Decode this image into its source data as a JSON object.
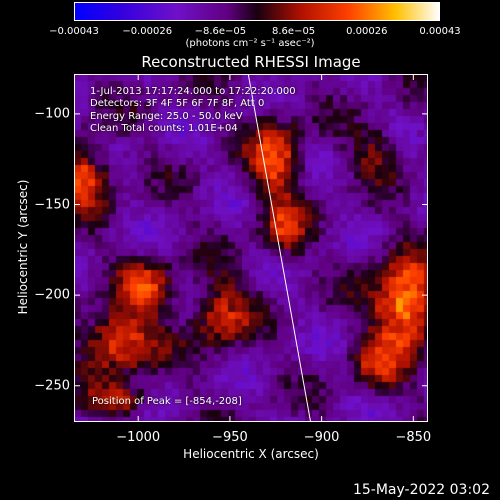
{
  "chart_data": {
    "type": "heatmap",
    "title": "Reconstructed RHESSI Image",
    "xlabel": "Heliocentric X (arcsec)",
    "ylabel": "Heliocentric Y (arcsec)",
    "xlim": [
      -1035,
      -842
    ],
    "ylim": [
      -270,
      -78
    ],
    "x_ticks": [
      -1000,
      -950,
      -900,
      -850
    ],
    "x_tick_labels": [
      "−1000",
      "−950",
      "−900",
      "−850"
    ],
    "y_ticks": [
      -100,
      -150,
      -200,
      -250
    ],
    "y_tick_labels": [
      "−100",
      "−150",
      "−200",
      "−250"
    ],
    "colorbar": {
      "range": [
        -0.00043,
        0.00043
      ],
      "tick_labels": [
        "−0.00043",
        "−0.00026",
        "−8.6e−05",
        "8.6e−05",
        "0.00026",
        "0.00043"
      ],
      "unit": "(photons cm⁻² s⁻¹ asec⁻²)"
    },
    "annotations": {
      "time_range": "1-Jul-2013 17:17:24.000 to 17:22:20.000",
      "detectors": "Detectors: 3F 4F 5F 6F 7F 8F, Att 0",
      "energy": "Energy Range: 25.0 - 50.0 keV",
      "clean": "Clean    Total counts: 1.01E+04",
      "peak": "Position of Peak = [-854,-208]"
    },
    "limb_line": {
      "x": [
        -940,
        -906
      ],
      "y": [
        -78,
        -270
      ]
    },
    "peak_position": [
      -854,
      -208
    ],
    "hotspots": [
      {
        "x": -855,
        "y": -205,
        "amp": 1.0,
        "sx": 12,
        "sy": 18
      },
      {
        "x": -1030,
        "y": -135,
        "amp": 0.75,
        "sx": 10,
        "sy": 12
      },
      {
        "x": -1010,
        "y": -225,
        "amp": 0.75,
        "sx": 14,
        "sy": 12
      },
      {
        "x": -995,
        "y": -195,
        "amp": 0.6,
        "sx": 10,
        "sy": 10
      },
      {
        "x": -925,
        "y": -125,
        "amp": 0.65,
        "sx": 10,
        "sy": 16
      },
      {
        "x": -955,
        "y": -210,
        "amp": 0.55,
        "sx": 12,
        "sy": 14
      },
      {
        "x": -920,
        "y": -165,
        "amp": 0.55,
        "sx": 8,
        "sy": 10
      },
      {
        "x": -1010,
        "y": -258,
        "amp": 0.5,
        "sx": 12,
        "sy": 6
      },
      {
        "x": -870,
        "y": -120,
        "amp": 0.35,
        "sx": 10,
        "sy": 10
      },
      {
        "x": -870,
        "y": -240,
        "amp": 0.45,
        "sx": 10,
        "sy": 10
      }
    ],
    "footer": "15-May-2022 03:02"
  }
}
